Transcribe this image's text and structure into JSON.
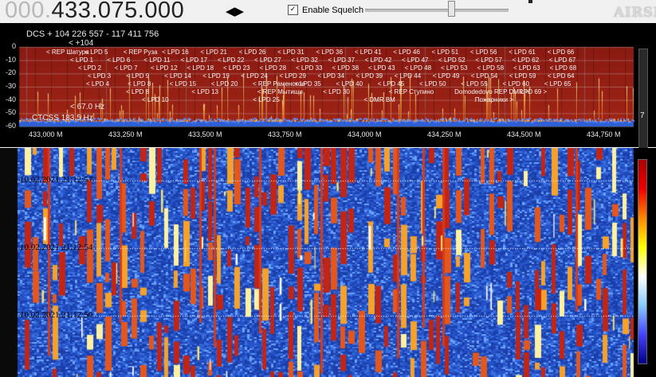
{
  "top": {
    "freq_prefix": "000.",
    "freq_main": "433.075.000",
    "step_arrows": "◀▶",
    "squelch_label": "Enable Squelch",
    "squelch_checked": "✓",
    "logo": "AIRSPY",
    "slider_level": 0.58
  },
  "spectrum": {
    "dcs": "DCS + 104 226 557   - 117 411 756",
    "dcs_extra": "< +104",
    "ctcss_a": "< 67.0 Hz",
    "ctcss_b": "CTCSS   183.5 Hz",
    "side_value": "7",
    "y_ticks": [
      "0",
      "-10",
      "-20",
      "-30",
      "-40",
      "-50",
      "-60"
    ],
    "x_ticks": [
      "433,000 M",
      "433,250 M",
      "433,500 M",
      "433,750 M",
      "434,000 M",
      "434,250 M",
      "434,500 M",
      "434,750 M"
    ],
    "rows": [
      [
        "< REP Шатура",
        "< LPD 5",
        "< REP Руза",
        "< LPD 16",
        "< LPD 21",
        "< LPD 26",
        "< LPD 31",
        "< LPD 36",
        "< LPD 41",
        "< LPD 46",
        "< LPD 51",
        "< LPD 56",
        "< LPD 61",
        "< LPD 66"
      ],
      [
        "< LPD 1",
        "< LPD 6",
        "< LPD 11",
        "< LPD 17",
        "< LPD 22",
        "< LPD 27",
        "< LPD 32",
        "< LPD 37",
        "< LPD 42",
        "< LPD 47",
        "< LPD 52",
        "< LPD 57",
        "< LPD 62",
        "< LPD 67"
      ],
      [
        "< LPD 2",
        "< LPD 7",
        "< LPD 12",
        "< LPD 18",
        "< LPD 23",
        "< LPD 28",
        "< LPD 33",
        "< LPD 38",
        "< LPD 43",
        "< LPD 48",
        "< LPD 53",
        "< LPD 58",
        "< LPD 63",
        "< LPD 68"
      ],
      [
        "< LPD 3",
        "< LPD 9",
        "< LPD 14",
        "< LPD 19",
        "< LPD 24",
        "< LPD 29",
        "< LPD 34",
        "< LPD 39",
        "< LPD 44",
        "< LPD 49",
        "< LPD 54",
        "< LPD 59",
        "< LPD 64"
      ],
      [
        "< LPD 4",
        "< LPD 8",
        "< LPD 15",
        "< LPD 20",
        "< REP Раменское",
        "< LPD 35",
        "< LPD 40",
        "< LPD 45",
        "< LPD 50",
        "< LPD 55",
        "< LPD 60",
        "< LPD 65"
      ],
      [
        "< LPD 8",
        "< LPD 13",
        "< REP Мытищи",
        "< LPD 30",
        "< REP Ступино",
        "Domodedovo REP DMR >",
        "LPD 69 >"
      ],
      [
        "< LPD 10",
        "< LPD 25",
        "< DMR BM",
        "Пожарники >"
      ]
    ]
  },
  "waterfall": {
    "timestamps": [
      "10.02.2021 21:12:57",
      "10.02.2021 21:12:54",
      "10.02.2021 21:12:50"
    ]
  }
}
